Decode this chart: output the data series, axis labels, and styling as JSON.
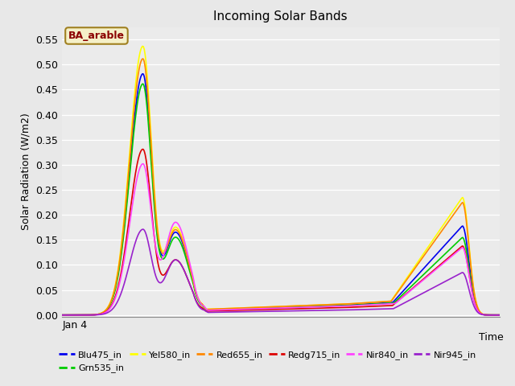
{
  "title": "Incoming Solar Bands",
  "ylabel": "Solar Radiation (W/m2)",
  "yticks": [
    0.0,
    0.05,
    0.1,
    0.15,
    0.2,
    0.25,
    0.3,
    0.35,
    0.4,
    0.45,
    0.5,
    0.55
  ],
  "background_color": "#e8e8e8",
  "plot_bg_color": "#ebebeb",
  "annotation_text": "BA_arable",
  "annotation_color": "#8b0000",
  "annotation_bg": "#f5f0c8",
  "annotation_edge": "#a08020",
  "series_order": [
    "Blu475_in",
    "Grn535_in",
    "Yel580_in",
    "Red655_in",
    "Redg715_in",
    "Nir840_in",
    "Nir945_in"
  ],
  "series": {
    "Blu475_in": {
      "color": "#0000ee",
      "lw": 1.2
    },
    "Grn535_in": {
      "color": "#00cc00",
      "lw": 1.2
    },
    "Yel580_in": {
      "color": "#ffff00",
      "lw": 1.2
    },
    "Red655_in": {
      "color": "#ff8800",
      "lw": 1.2
    },
    "Redg715_in": {
      "color": "#dd0000",
      "lw": 1.2
    },
    "Nir840_in": {
      "color": "#ff44ff",
      "lw": 1.2
    },
    "Nir945_in": {
      "color": "#9922cc",
      "lw": 1.2
    }
  },
  "peak1": {
    "Blu475_in": 0.48,
    "Grn535_in": 0.46,
    "Yel580_in": 0.535,
    "Red655_in": 0.51,
    "Redg715_in": 0.33,
    "Nir840_in": 0.3,
    "Nir945_in": 0.17
  },
  "peak2": {
    "Blu475_in": 0.178,
    "Grn535_in": 0.155,
    "Yel580_in": 0.235,
    "Red655_in": 0.225,
    "Redg715_in": 0.138,
    "Nir840_in": 0.135,
    "Nir945_in": 0.085
  },
  "shoulder": {
    "Blu475_in": 0.165,
    "Grn535_in": 0.155,
    "Yel580_in": 0.175,
    "Red655_in": 0.17,
    "Redg715_in": 0.11,
    "Nir840_in": 0.185,
    "Nir945_in": 0.11
  },
  "mid_level": {
    "Blu475_in": 0.02,
    "Grn535_in": 0.019,
    "Yel580_in": 0.022,
    "Red655_in": 0.022,
    "Redg715_in": 0.015,
    "Nir840_in": 0.018,
    "Nir945_in": 0.01
  }
}
